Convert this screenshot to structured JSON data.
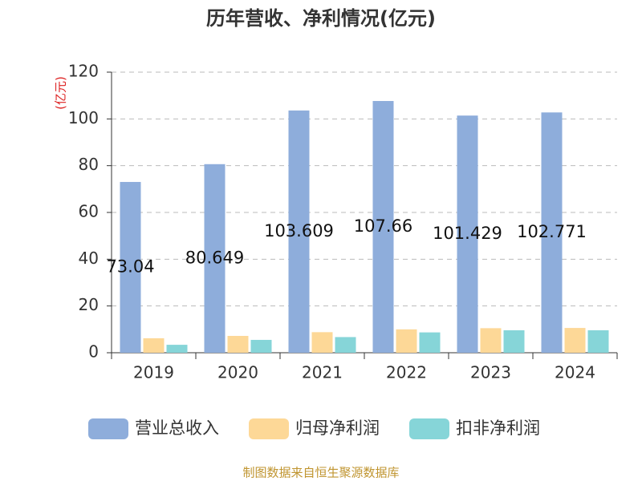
{
  "chart_data": {
    "type": "bar",
    "title": "历年营收、净利情况(亿元)",
    "y_axis_label": "(亿元)",
    "source": "制图数据来自恒生聚源数据库",
    "categories": [
      "2019",
      "2020",
      "2021",
      "2022",
      "2023",
      "2024"
    ],
    "series": [
      {
        "name": "营业总收入",
        "color": "#8eaddb",
        "values": [
          73.04,
          80.649,
          103.609,
          107.66,
          101.429,
          102.771
        ],
        "show_labels": true
      },
      {
        "name": "归母净利润",
        "color": "#fdd897",
        "values": [
          6.2,
          7.2,
          8.8,
          10.0,
          10.5,
          10.6
        ],
        "show_labels": false
      },
      {
        "name": "扣非净利润",
        "color": "#86d5d8",
        "values": [
          3.4,
          5.5,
          6.7,
          8.7,
          9.6,
          9.6
        ],
        "show_labels": false
      }
    ],
    "ylim": [
      0,
      120
    ],
    "yticks": [
      0,
      20,
      40,
      60,
      80,
      100,
      120
    ],
    "grid": true,
    "legend": "bottom"
  }
}
